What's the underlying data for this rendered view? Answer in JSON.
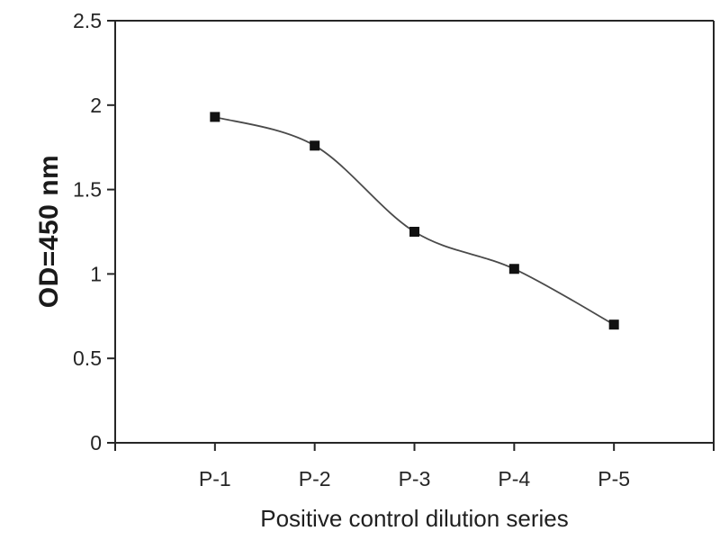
{
  "chart_data": {
    "type": "line",
    "title": "",
    "categories": [
      "P-1",
      "P-2",
      "P-3",
      "P-4",
      "P-5"
    ],
    "values": [
      1.93,
      1.76,
      1.25,
      1.03,
      0.7
    ],
    "xlabel": "Positive control dilution series",
    "ylabel": "OD=450 nm",
    "ylim": [
      0,
      2.5
    ],
    "ytick_labels": [
      "0",
      "0.5",
      "1",
      "1.5",
      "2",
      "2.5"
    ],
    "x_slots": 6,
    "grid": false,
    "legend": "none",
    "line_smoothed": true,
    "marker": "filled-square",
    "marker_size": 11,
    "colors": {
      "line": "#4a4a4a",
      "marker": "#111111",
      "axis": "#262626",
      "tick_text": "#262626",
      "background": "#ffffff"
    }
  }
}
